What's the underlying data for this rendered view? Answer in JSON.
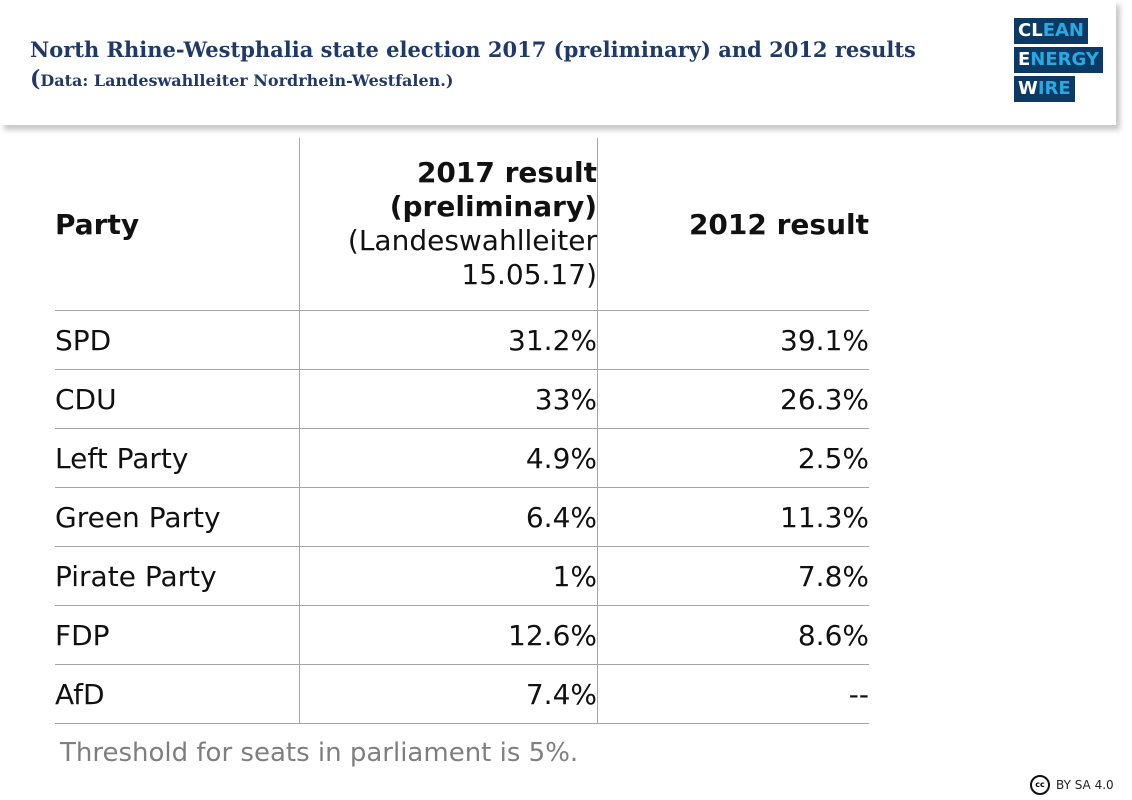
{
  "header": {
    "title": "North Rhine-Westphalia state election 2017 (preliminary) and 2012 results",
    "subtitle_paren_open": "(",
    "subtitle_text": "Data: Landeswahlleiter Nordrhein-Westfalen.)"
  },
  "logo": {
    "line1_a": "CL",
    "line1_b": "EAN",
    "line2_a": "E",
    "line2_b": "NERGY",
    "line3_a": "W",
    "line3_b": "IRE"
  },
  "chart_data": {
    "type": "table",
    "columns": [
      "Party",
      "2017 result (preliminary)",
      "2012 result"
    ],
    "column_note": "(Landeswahlleiter 15.05.17)",
    "rows": [
      [
        "SPD",
        "31.2%",
        "39.1%"
      ],
      [
        "CDU",
        "33%",
        "26.3%"
      ],
      [
        "Left Party",
        "4.9%",
        "2.5%"
      ],
      [
        "Green Party",
        "6.4%",
        "11.3%"
      ],
      [
        "Pirate Party",
        "1%",
        "7.8%"
      ],
      [
        "FDP",
        "12.6%",
        "8.6%"
      ],
      [
        "AfD",
        "7.4%",
        "--"
      ]
    ],
    "headers": {
      "party": "Party",
      "result2017_line1": "2017 result",
      "result2017_line2": "(preliminary)",
      "result2017_note1": "(Landeswahlleiter",
      "result2017_note2": "15.05.17)",
      "result2012": "2012 result"
    }
  },
  "footnote": "Threshold for seats in parliament is 5%.",
  "license": {
    "icon": "cc",
    "text": "BY SA 4.0"
  },
  "colors": {
    "title": "#1f3a68",
    "logo_bg": "#0c3a64",
    "logo_accent": "#29a9e1",
    "footnote": "#7f7f7f"
  }
}
